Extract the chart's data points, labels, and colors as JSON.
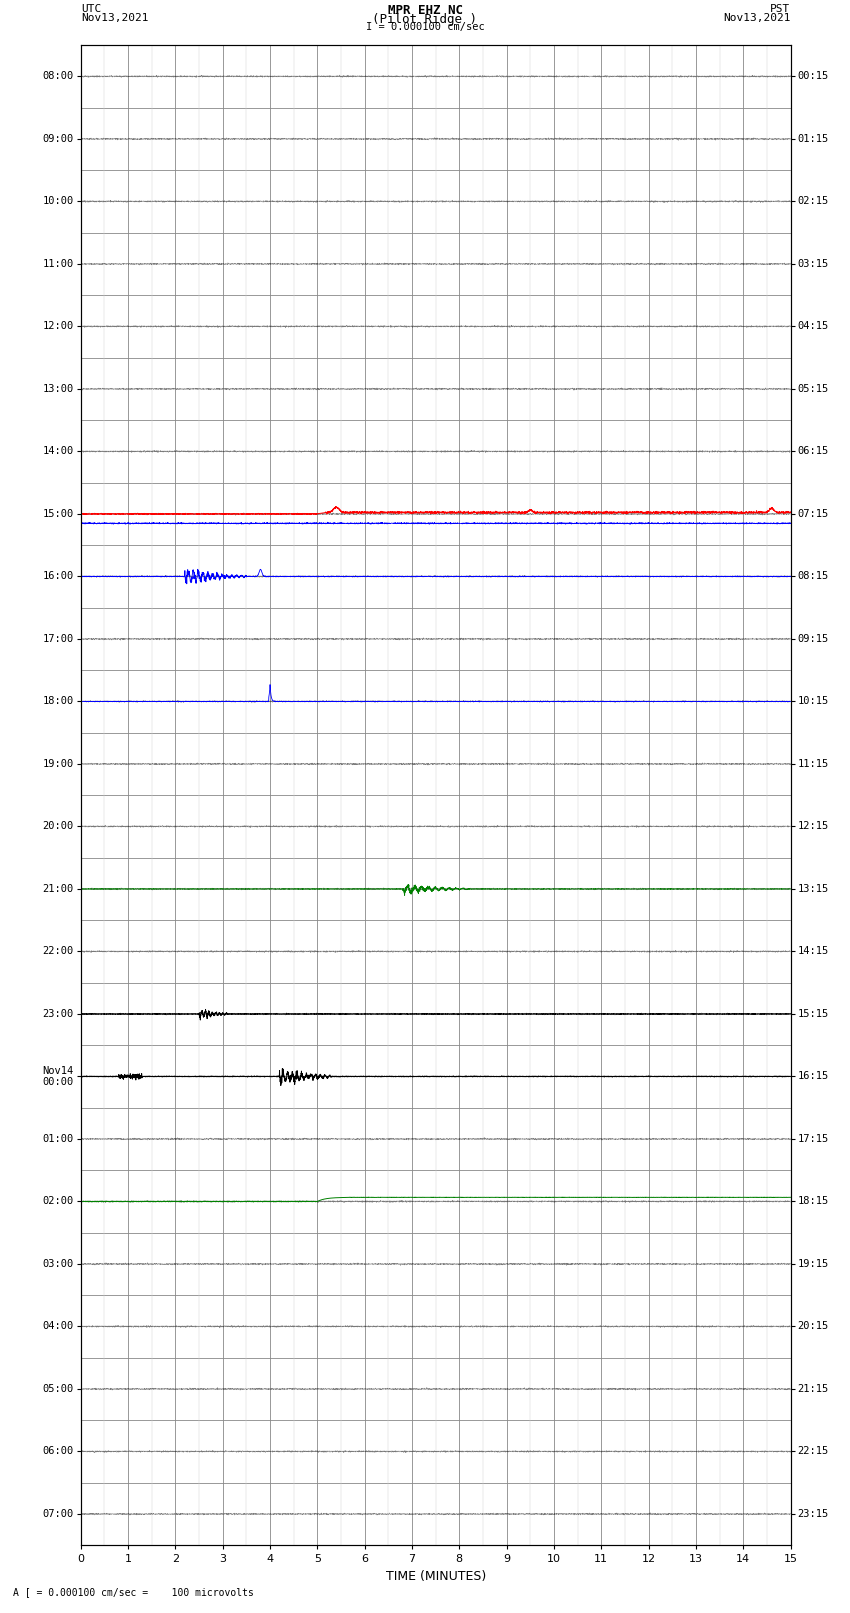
{
  "title_line1": "MPR EHZ NC",
  "title_line2": "(Pilot Ridge )",
  "title_line3": "I = 0.000100 cm/sec",
  "left_header_line1": "UTC",
  "left_header_line2": "Nov13,2021",
  "right_header_line1": "PST",
  "right_header_line2": "Nov13,2021",
  "xlabel": "TIME (MINUTES)",
  "footer": "A [ = 0.000100 cm/sec =    100 microvolts",
  "utc_labels": [
    "08:00",
    "09:00",
    "10:00",
    "11:00",
    "12:00",
    "13:00",
    "14:00",
    "15:00",
    "16:00",
    "17:00",
    "18:00",
    "19:00",
    "20:00",
    "21:00",
    "22:00",
    "23:00",
    "Nov14\n00:00",
    "01:00",
    "02:00",
    "03:00",
    "04:00",
    "05:00",
    "06:00",
    "07:00"
  ],
  "pst_labels": [
    "00:15",
    "01:15",
    "02:15",
    "03:15",
    "04:15",
    "05:15",
    "06:15",
    "07:15",
    "08:15",
    "09:15",
    "10:15",
    "11:15",
    "12:15",
    "13:15",
    "14:15",
    "15:15",
    "16:15",
    "17:15",
    "18:15",
    "19:15",
    "20:15",
    "21:15",
    "22:15",
    "23:15"
  ],
  "n_rows": 24,
  "n_minutes": 15,
  "bg_color": "#ffffff",
  "grid_major_color": "#888888",
  "grid_minor_color": "#cccccc",
  "trace_color_default": "#000000"
}
